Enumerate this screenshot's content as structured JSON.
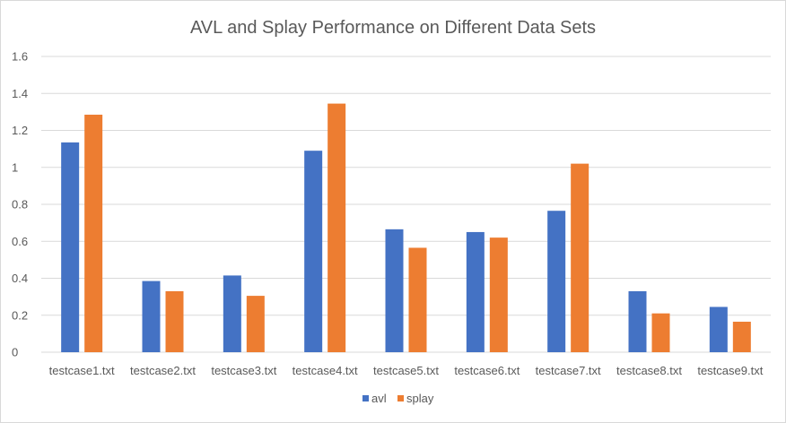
{
  "chart_data": {
    "type": "bar",
    "title": "AVL and Splay Performance on Different Data Sets",
    "xlabel": "",
    "ylabel": "",
    "ylim": [
      0,
      1.6
    ],
    "yticks": [
      "0",
      "0.2",
      "0.4",
      "0.6",
      "0.8",
      "1",
      "1.2",
      "1.4",
      "1.6"
    ],
    "grid": true,
    "legend_position": "bottom",
    "categories": [
      "testcase1.txt",
      "testcase2.txt",
      "testcase3.txt",
      "testcase4.txt",
      "testcase5.txt",
      "testcase6.txt",
      "testcase7.txt",
      "testcase8.txt",
      "testcase9.txt"
    ],
    "series": [
      {
        "name": "avl",
        "color": "#4472C4",
        "values": [
          1.135,
          0.385,
          0.415,
          1.09,
          0.665,
          0.65,
          0.765,
          0.33,
          0.245
        ]
      },
      {
        "name": "splay",
        "color": "#ED7D31",
        "values": [
          1.285,
          0.33,
          0.305,
          1.345,
          0.565,
          0.62,
          1.02,
          0.21,
          0.165
        ]
      }
    ]
  }
}
